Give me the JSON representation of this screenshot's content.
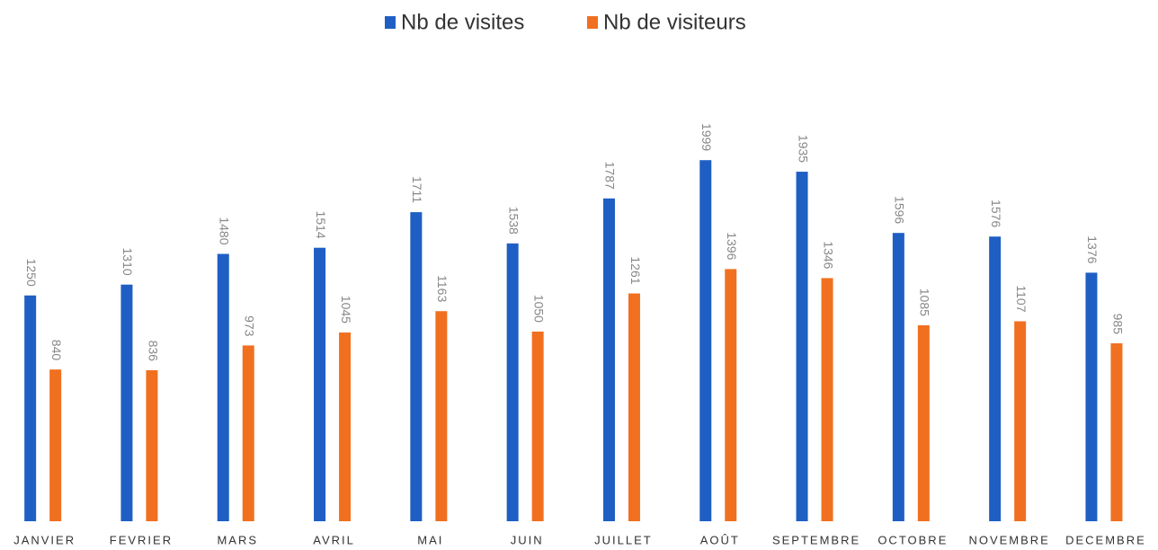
{
  "chart_data": {
    "type": "bar",
    "categories": [
      "JANVIER",
      "FEVRIER",
      "MARS",
      "AVRIL",
      "MAI",
      "JUIN",
      "JUILLET",
      "AOÛT",
      "SEPTEMBRE",
      "OCTOBRE",
      "NOVEMBRE",
      "DECEMBRE"
    ],
    "series": [
      {
        "name": "Nb de visites",
        "color": "#1f5fc4",
        "values": [
          1250,
          1310,
          1480,
          1514,
          1711,
          1538,
          1787,
          1999,
          1935,
          1596,
          1576,
          1376
        ]
      },
      {
        "name": "Nb de visiteurs",
        "color": "#f07020",
        "values": [
          840,
          836,
          973,
          1045,
          1163,
          1050,
          1261,
          1396,
          1346,
          1085,
          1107,
          985
        ]
      }
    ],
    "ylim": [
      0,
      2000
    ],
    "legend": "top"
  }
}
